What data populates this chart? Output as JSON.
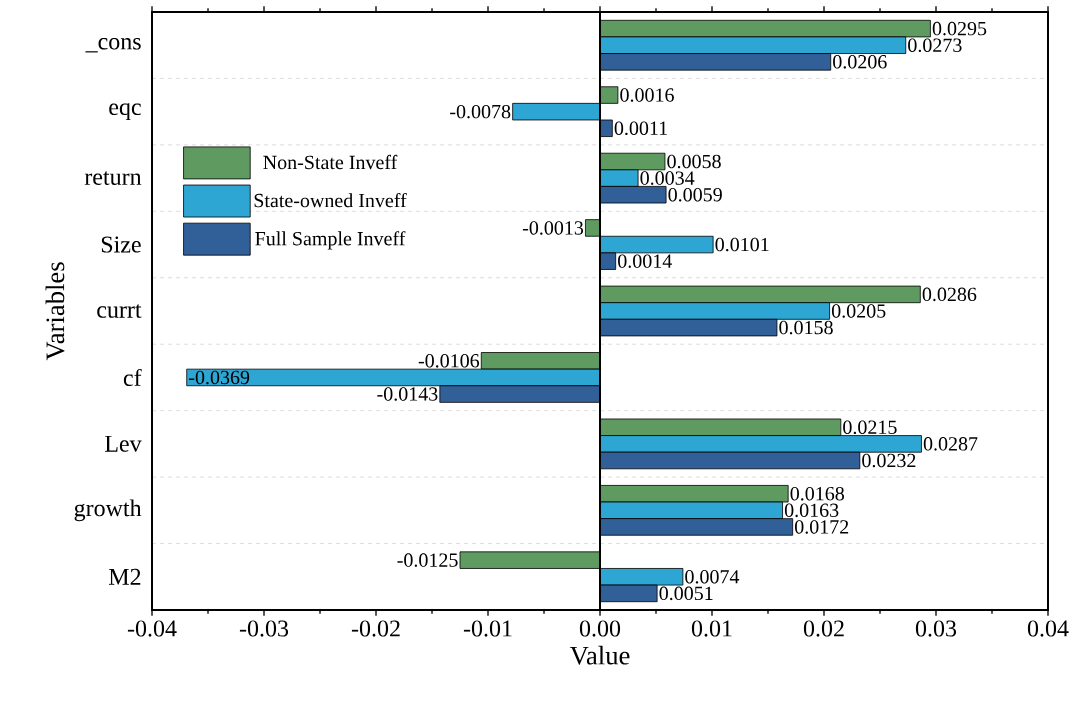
{
  "chart_data": {
    "type": "bar",
    "orientation": "horizontal",
    "xlabel": "Value",
    "ylabel": "Variables",
    "categories": [
      "_cons",
      "eqc",
      "return",
      "Size",
      "currt",
      "cf",
      "Lev",
      "growth",
      "M2"
    ],
    "series": [
      {
        "name": "Non-State Inveff",
        "color": "#5f9a60",
        "values": [
          0.0295,
          0.0016,
          0.0058,
          -0.0013,
          0.0286,
          -0.0106,
          0.0215,
          0.0168,
          -0.0125
        ]
      },
      {
        "name": "State-owned Inveff",
        "color": "#2ea6d3",
        "values": [
          0.0273,
          -0.0078,
          0.0034,
          0.0101,
          0.0205,
          -0.0369,
          0.0287,
          0.0163,
          0.0074
        ]
      },
      {
        "name": "Full Sample Inveff",
        "color": "#315f98",
        "values": [
          0.0206,
          0.0011,
          0.0059,
          0.0014,
          0.0158,
          -0.0143,
          0.0232,
          0.0172,
          0.0051
        ]
      }
    ],
    "xlim": [
      -0.04,
      0.04
    ],
    "xticks": [
      -0.04,
      -0.03,
      -0.02,
      -0.01,
      {
        "value": 0,
        "label": "0.00"
      },
      0.01,
      0.02,
      0.03,
      0.04
    ],
    "ref_lines": [
      {
        "axis": "x",
        "value": 0
      }
    ],
    "data_labels": true,
    "grid": "y",
    "legend": "left"
  }
}
